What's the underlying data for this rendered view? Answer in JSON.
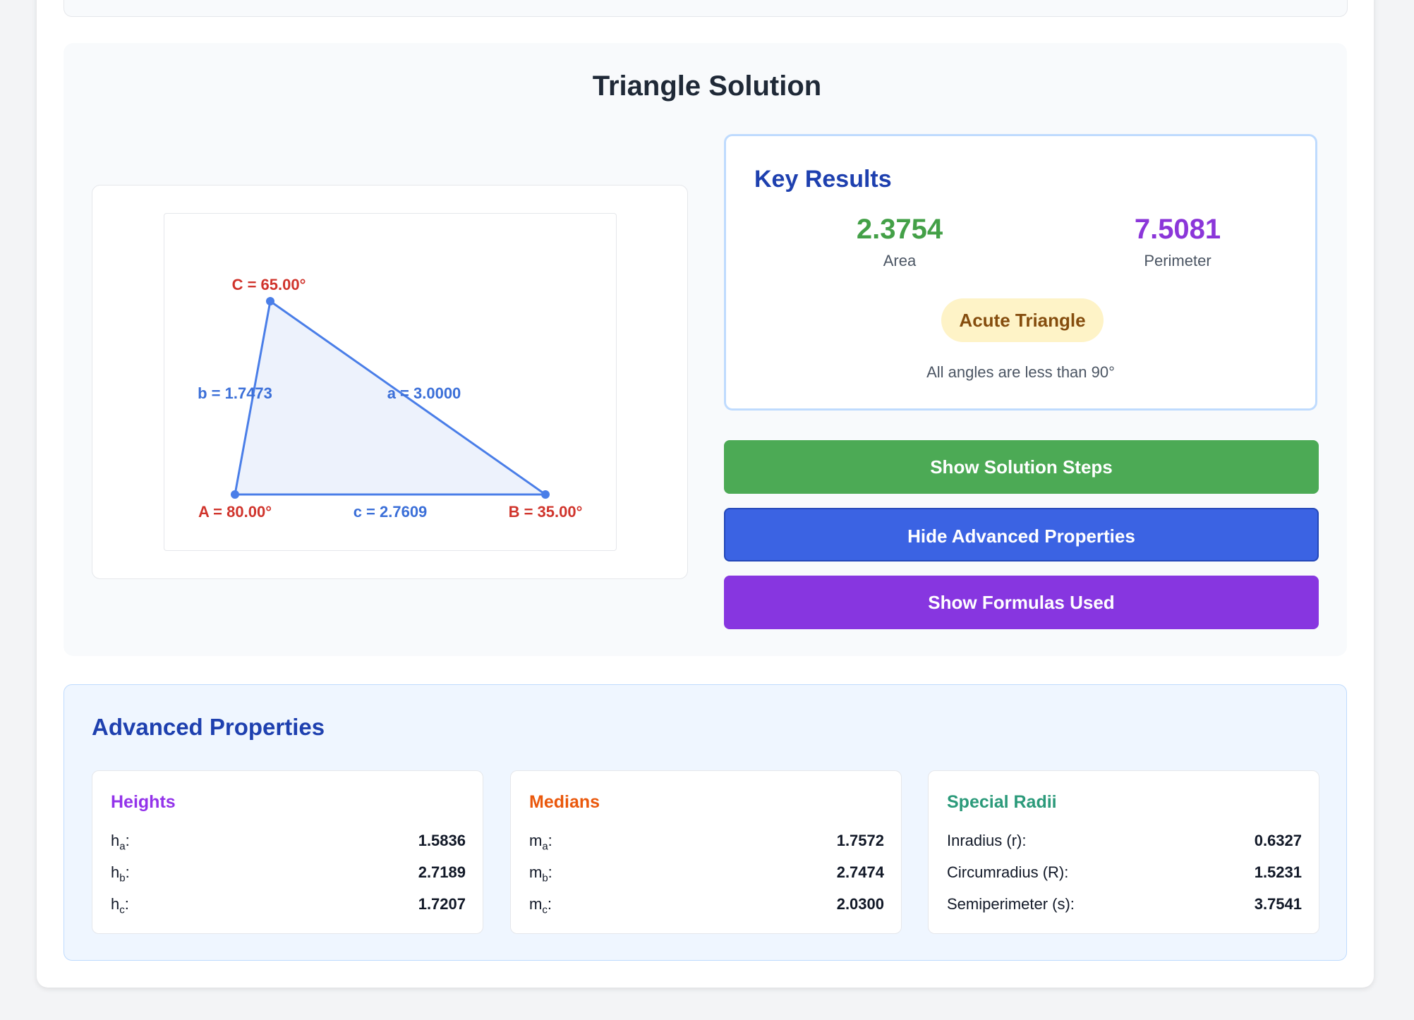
{
  "solution": {
    "title": "Triangle Solution"
  },
  "diagram": {
    "vertex_labels": {
      "A": "A = 80.00°",
      "B": "B = 35.00°",
      "C": "C = 65.00°"
    },
    "side_labels": {
      "a": "a = 3.0000",
      "b": "b = 1.7473",
      "c": "c = 2.7609"
    },
    "colors": {
      "edge": "#4a7ee8",
      "fill": "#edf2fc",
      "angle_label": "#d0342c",
      "side_label": "#3b6fd8"
    }
  },
  "key_results": {
    "title": "Key Results",
    "area": {
      "value": "2.3754",
      "label": "Area",
      "color": "#43a047"
    },
    "perimeter": {
      "value": "7.5081",
      "label": "Perimeter",
      "color": "#8b36d9"
    },
    "classification": {
      "badge": "Acute Triangle",
      "description": "All angles are less than 90°"
    }
  },
  "actions": {
    "solution_steps": {
      "label": "Show Solution Steps",
      "color": "#4caa55"
    },
    "advanced": {
      "label": "Hide Advanced Properties",
      "color": "#3b63e3"
    },
    "formulas": {
      "label": "Show Formulas Used",
      "color": "#8736e0"
    }
  },
  "advanced": {
    "title": "Advanced Properties",
    "heights": {
      "title": "Heights",
      "color": "#9333ea",
      "rows": [
        {
          "sym": "h",
          "sub": "a",
          "value": "1.5836"
        },
        {
          "sym": "h",
          "sub": "b",
          "value": "2.7189"
        },
        {
          "sym": "h",
          "sub": "c",
          "value": "1.7207"
        }
      ]
    },
    "medians": {
      "title": "Medians",
      "color": "#ea580c",
      "rows": [
        {
          "sym": "m",
          "sub": "a",
          "value": "1.7572"
        },
        {
          "sym": "m",
          "sub": "b",
          "value": "2.7474"
        },
        {
          "sym": "m",
          "sub": "c",
          "value": "2.0300"
        }
      ]
    },
    "special_radii": {
      "title": "Special Radii",
      "color": "#2b9a7a",
      "rows": [
        {
          "label": "Inradius (r):",
          "value": "0.6327"
        },
        {
          "label": "Circumradius (R):",
          "value": "1.5231"
        },
        {
          "label": "Semiperimeter (s):",
          "value": "3.7541"
        }
      ]
    }
  }
}
